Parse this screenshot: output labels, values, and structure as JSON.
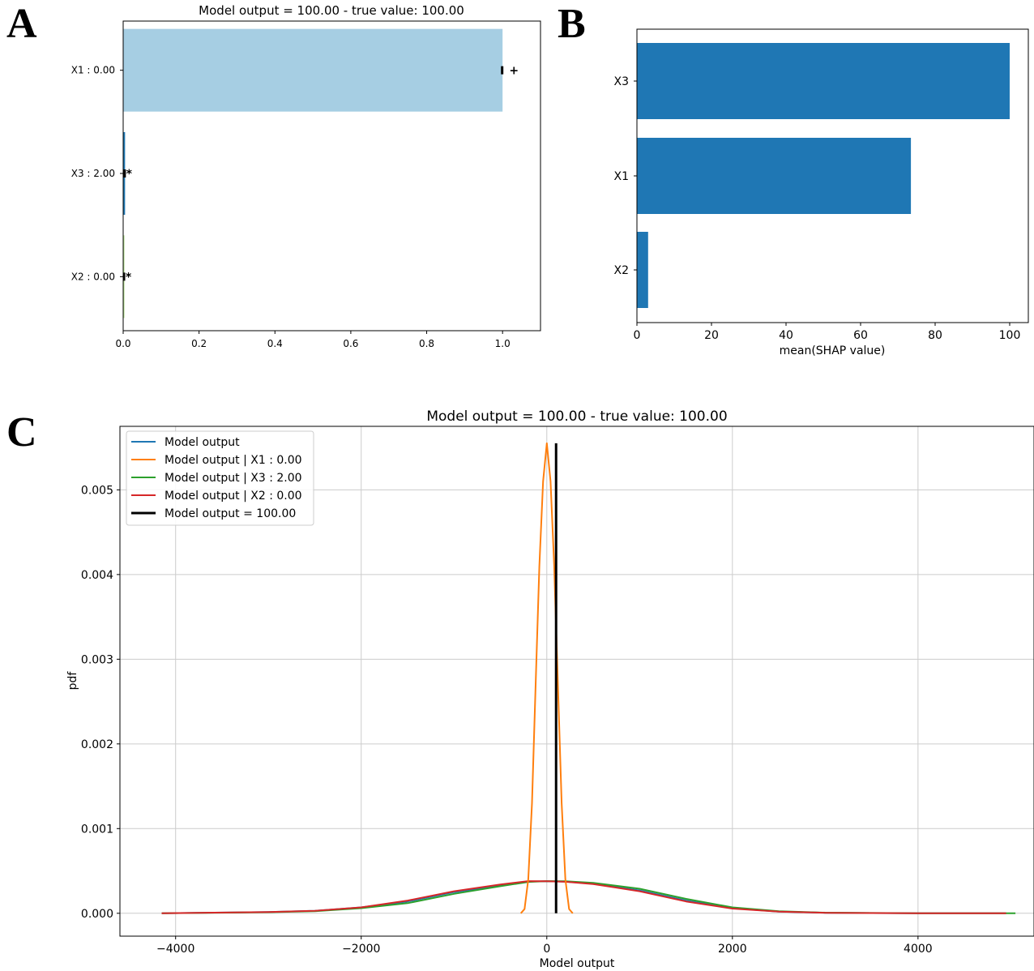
{
  "panels": {
    "a": "A",
    "b": "B",
    "c": "C"
  },
  "chart_data": [
    {
      "panel": "A",
      "type": "bar",
      "orientation": "horizontal",
      "title": "Model output = 100.00 - true value: 100.00",
      "categories": [
        "X1 : 0.00",
        "X3 : 2.00",
        "X2 : 0.00"
      ],
      "values": [
        1.0,
        0.005,
        0.001
      ],
      "colors": [
        "#a6cee3",
        "#1f78b4",
        "#b2df8a"
      ],
      "markers": [
        "+",
        "*",
        "*"
      ],
      "xlim": [
        0.0,
        1.1
      ],
      "xticks": [
        "0.0",
        "0.2",
        "0.4",
        "0.6",
        "0.8",
        "1.0"
      ]
    },
    {
      "panel": "B",
      "type": "bar",
      "orientation": "horizontal",
      "categories": [
        "X3",
        "X1",
        "X2"
      ],
      "values": [
        100,
        73.5,
        3
      ],
      "color": "#1f77b4",
      "xlabel": "mean(SHAP value)",
      "xlim": [
        0,
        105
      ],
      "xticks": [
        "0",
        "20",
        "40",
        "60",
        "80",
        "100"
      ]
    },
    {
      "panel": "C",
      "type": "line",
      "title": "Model output = 100.00 - true value: 100.00",
      "xlabel": "Model output",
      "ylabel": "pdf",
      "xlim": [
        -4600,
        5250
      ],
      "ylim": [
        -0.00027,
        0.00575
      ],
      "xticks": [
        "−4000",
        "−2000",
        "0",
        "2000",
        "4000"
      ],
      "yticks": [
        "0.000",
        "0.001",
        "0.002",
        "0.003",
        "0.004",
        "0.005"
      ],
      "grid": true,
      "legend_position": "top-left",
      "series": [
        {
          "name": "Model output",
          "color": "#1f77b4",
          "x": [
            -4150,
            -3000,
            -2500,
            -2000,
            -1500,
            -1000,
            -500,
            -200,
            0,
            200,
            500,
            1000,
            1500,
            2000,
            2500,
            3000,
            4000,
            4950
          ],
          "y": [
            0.0,
            1.5e-05,
            3e-05,
            7e-05,
            0.00014,
            0.00025,
            0.00033,
            0.000375,
            0.000378,
            0.000374,
            0.00035,
            0.00027,
            0.00015,
            6e-05,
            2e-05,
            6e-06,
            0.0,
            0.0
          ]
        },
        {
          "name": "Model output | X1 : 0.00",
          "color": "#ff7f0e",
          "x": [
            -280,
            -240,
            -200,
            -160,
            -120,
            -80,
            -40,
            0,
            40,
            80,
            120,
            160,
            200,
            240,
            280
          ],
          "y": [
            0.0,
            5e-05,
            0.0004,
            0.0013,
            0.0027,
            0.0041,
            0.0051,
            0.00555,
            0.0051,
            0.0041,
            0.0027,
            0.0013,
            0.0004,
            5e-05,
            0.0
          ]
        },
        {
          "name": "Model output | X3 : 2.00",
          "color": "#2ca02c",
          "x": [
            -4150,
            -3000,
            -2500,
            -2000,
            -1500,
            -1000,
            -500,
            -200,
            0,
            200,
            500,
            1000,
            1500,
            2000,
            2500,
            3000,
            4000,
            5050
          ],
          "y": [
            0.0,
            1.2e-05,
            2.5e-05,
            6e-05,
            0.00012,
            0.00023,
            0.00032,
            0.00037,
            0.00038,
            0.000378,
            0.00036,
            0.00029,
            0.00017,
            7e-05,
            2.5e-05,
            8e-06,
            0.0,
            0.0
          ]
        },
        {
          "name": "Model output | X2 : 0.00",
          "color": "#d62728",
          "x": [
            -4150,
            -3000,
            -2500,
            -2000,
            -1500,
            -1000,
            -500,
            -200,
            0,
            200,
            500,
            1000,
            1500,
            2000,
            2500,
            3000,
            4000,
            4950
          ],
          "y": [
            0.0,
            1.5e-05,
            3e-05,
            7e-05,
            0.00015,
            0.00026,
            0.00034,
            0.00038,
            0.000378,
            0.000372,
            0.000345,
            0.00026,
            0.00014,
            5.5e-05,
            2e-05,
            6e-06,
            0.0,
            0.0
          ]
        },
        {
          "name": "Model output = 100.00",
          "color": "#000000",
          "vertical_line_x": 100
        }
      ]
    }
  ]
}
